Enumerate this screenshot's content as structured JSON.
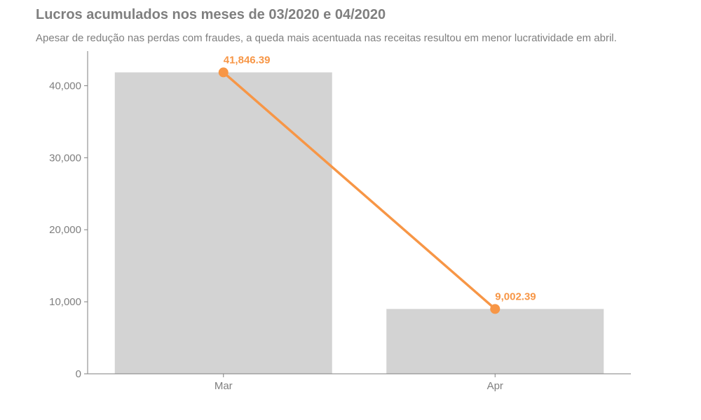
{
  "chart_data": {
    "type": "bar",
    "title": "Lucros acumulados nos meses de 03/2020 e 04/2020",
    "subtitle": "Apesar de redução nas perdas com fraudes, a queda mais acentuada nas receitas resultou em menor lucratividade em abril.",
    "categories": [
      "Mar",
      "Apr"
    ],
    "series": [
      {
        "values": [
          41846.39,
          9002.39
        ],
        "mark": "bar",
        "color": "#d3d3d3"
      },
      {
        "values": [
          41846.39,
          9002.39
        ],
        "mark": "line",
        "color": "#f79646"
      }
    ],
    "data_labels": [
      "41,846.39",
      "9,002.39"
    ],
    "yticks": [
      0,
      10000,
      20000,
      30000,
      40000
    ],
    "ytick_labels": [
      "0",
      "10,000",
      "20,000",
      "30,000",
      "40,000"
    ],
    "ylim": [
      0,
      44800
    ],
    "xlabel": "",
    "ylabel": "",
    "grid": false,
    "legend": "none"
  }
}
